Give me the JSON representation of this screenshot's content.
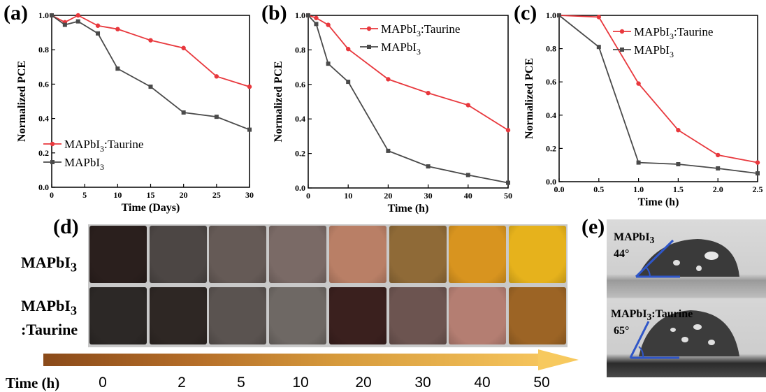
{
  "panel_labels": {
    "a": "(a)",
    "b": "(b)",
    "c": "(c)",
    "d": "(d)",
    "e": "(e)"
  },
  "colors": {
    "taurine": "#e8383d",
    "control": "#4a4a4a",
    "angle_line": "#2f56c8"
  },
  "chart_data": [
    {
      "type": "line",
      "panel": "(a)",
      "xlabel": "Time (Days)",
      "ylabel": "Normalized PCE",
      "xlim": [
        0,
        30
      ],
      "ylim": [
        0,
        1.0
      ],
      "xticks": [
        "0",
        "5",
        "10",
        "15",
        "20",
        "25",
        "30"
      ],
      "yticks": [
        "0.0",
        "0.2",
        "0.4",
        "0.6",
        "0.8",
        "1.0"
      ],
      "legend_position": "bottom-left",
      "series": [
        {
          "name": "MAPbI3:Taurine",
          "marker": "circle",
          "x": [
            0,
            2,
            4,
            7,
            10,
            15,
            20,
            25,
            30
          ],
          "y": [
            1.0,
            0.96,
            1.0,
            0.94,
            0.92,
            0.855,
            0.81,
            0.645,
            0.585
          ]
        },
        {
          "name": "MAPbI3",
          "marker": "square",
          "x": [
            0,
            2,
            4,
            7,
            10,
            15,
            20,
            25,
            30
          ],
          "y": [
            1.0,
            0.945,
            0.965,
            0.895,
            0.69,
            0.585,
            0.435,
            0.41,
            0.335
          ]
        }
      ]
    },
    {
      "type": "line",
      "panel": "(b)",
      "xlabel": "Time (h)",
      "ylabel": "Normalized PCE",
      "xlim": [
        0,
        50
      ],
      "ylim": [
        0,
        1.0
      ],
      "xticks": [
        "0",
        "10",
        "20",
        "30",
        "40",
        "50"
      ],
      "yticks": [
        "0.0",
        "0.2",
        "0.4",
        "0.6",
        "0.8",
        "1.0"
      ],
      "legend_position": "top-right",
      "series": [
        {
          "name": "MAPbI3:Taurine",
          "marker": "circle",
          "x": [
            0,
            2,
            5,
            10,
            20,
            30,
            40,
            50
          ],
          "y": [
            1.0,
            0.985,
            0.945,
            0.805,
            0.63,
            0.55,
            0.48,
            0.335
          ]
        },
        {
          "name": "MAPbI3",
          "marker": "square",
          "x": [
            0,
            2,
            5,
            10,
            20,
            30,
            40,
            50
          ],
          "y": [
            1.0,
            0.95,
            0.72,
            0.615,
            0.215,
            0.125,
            0.075,
            0.03
          ]
        }
      ]
    },
    {
      "type": "line",
      "panel": "(c)",
      "xlabel": "Time (h)",
      "ylabel": "Normalized PCE",
      "xlim": [
        0,
        2.5
      ],
      "ylim": [
        0,
        1.0
      ],
      "xticks": [
        "0.0",
        "0.5",
        "1.0",
        "1.5",
        "2.0",
        "2.5"
      ],
      "yticks": [
        "0.0",
        "0.2",
        "0.4",
        "0.6",
        "0.8",
        "1.0"
      ],
      "legend_position": "top-right",
      "series": [
        {
          "name": "MAPbI3:Taurine",
          "marker": "circle",
          "x": [
            0,
            0.5,
            1.0,
            1.5,
            2.0,
            2.5
          ],
          "y": [
            1.0,
            0.99,
            0.59,
            0.31,
            0.16,
            0.115
          ]
        },
        {
          "name": "MAPbI3",
          "marker": "square",
          "x": [
            0,
            0.5,
            1.0,
            1.5,
            2.0,
            2.5
          ],
          "y": [
            1.0,
            0.81,
            0.115,
            0.105,
            0.08,
            0.05
          ]
        }
      ]
    }
  ],
  "legend_text": {
    "taurine_prefix": "MAPbI",
    "taurine_sub": "3",
    "taurine_suffix": ":Taurine",
    "control_prefix": "MAPbI",
    "control_sub": "3"
  },
  "photo_panel": {
    "row_labels": [
      {
        "prefix": "MAPbI",
        "sub": "3",
        "suffix": ""
      },
      {
        "prefix": "MAPbI",
        "sub": "3",
        "suffix": ":Taurine"
      }
    ],
    "time_title": "Time (h)",
    "times": [
      "0",
      "2",
      "5",
      "10",
      "20",
      "30",
      "40",
      "50"
    ],
    "row_colors": [
      [
        "#2a1f1d",
        "#4c4644",
        "#655a56",
        "#7a6a66",
        "#b97f66",
        "#8f6a37",
        "#d8941f",
        "#e6b21c"
      ],
      [
        "#2c2826",
        "#2e2724",
        "#5a5350",
        "#6e6864",
        "#3a201e",
        "#6c5450",
        "#b47e72",
        "#9c6425"
      ]
    ]
  },
  "contact_angle": {
    "samples": [
      {
        "prefix": "MAPbI",
        "sub": "3",
        "suffix": "",
        "angle": "44°"
      },
      {
        "prefix": "MAPbI",
        "sub": "3",
        "suffix": ":Taurine",
        "angle": "65°"
      }
    ]
  }
}
